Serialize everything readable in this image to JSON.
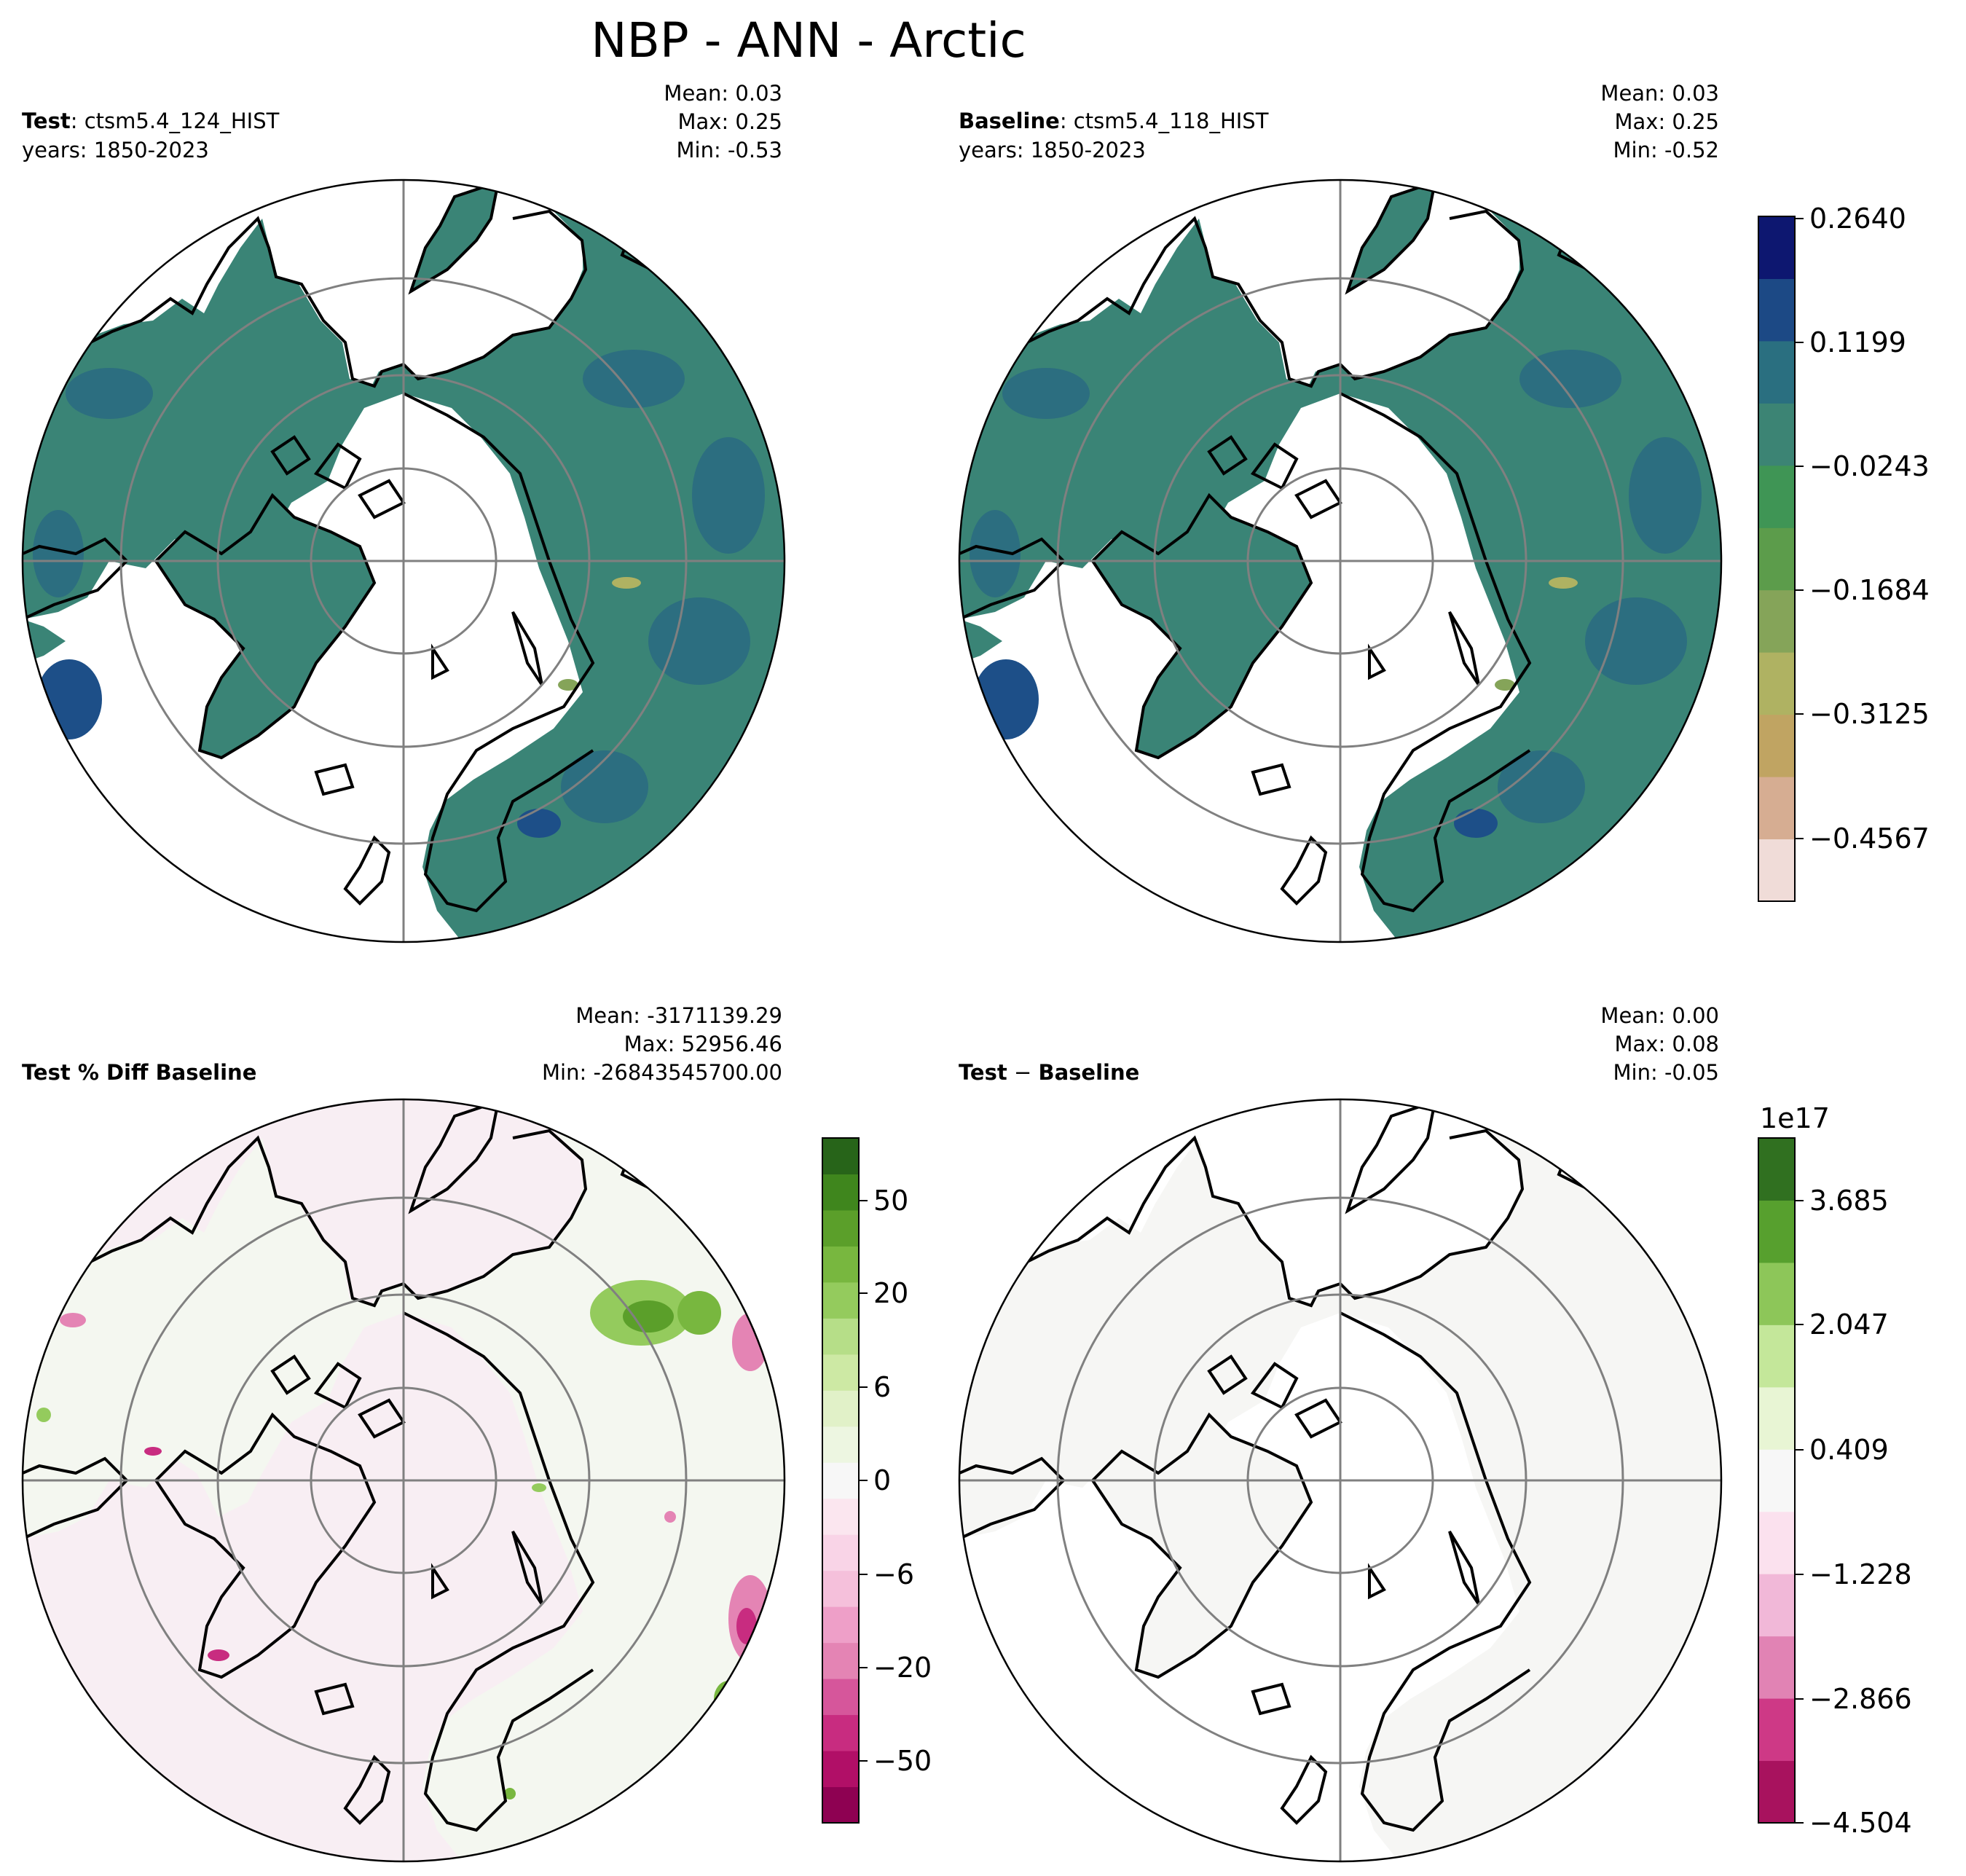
{
  "title": "NBP - ANN - Arctic",
  "panels": [
    {
      "id": "test",
      "label_bold": "Test",
      "label_rest": ": ctsm5.4_124_HIST",
      "years": "years: 1850-2023",
      "stats": {
        "mean": "Mean:  0.03",
        "max": "Max:  0.25",
        "min": "Min: -0.53"
      }
    },
    {
      "id": "baseline",
      "label_bold": "Baseline",
      "label_rest": ": ctsm5.4_118_HIST",
      "years": "years: 1850-2023",
      "stats": {
        "mean": "Mean:  0.03",
        "max": "Max:  0.25",
        "min": "Min: -0.52"
      }
    },
    {
      "id": "pct-diff",
      "label_bold": "Test % Diff Baseline",
      "label_rest": "",
      "years": "",
      "stats": {
        "mean": "Mean: -3171139.29",
        "max": "Max: 52956.46",
        "min": "Min: -26843545700.00"
      }
    },
    {
      "id": "diff",
      "label_bold": "Test",
      "label_rest": " − Baseline",
      "label_bold2": "Baseline",
      "years": "",
      "stats": {
        "mean": "Mean:  0.00",
        "max": "Max:  0.08",
        "min": "Min: -0.05"
      }
    }
  ],
  "colorbars": {
    "top": {
      "ticks": [
        "0.2640",
        "0.1199",
        "−0.0243",
        "−0.1684",
        "−0.3125",
        "−0.4567"
      ],
      "colors": [
        "#f0dcd8",
        "#d6ad92",
        "#c0a462",
        "#afb262",
        "#85a459",
        "#5c9c4b",
        "#3f9555",
        "#3c8474",
        "#2a6f80",
        "#1c4985",
        "#0d1770"
      ]
    },
    "pct": {
      "ticks": [
        "50",
        "20",
        "6",
        "0",
        "−6",
        "−20",
        "−50"
      ],
      "colors": [
        "#8e0152",
        "#b10f67",
        "#c82c80",
        "#d6569b",
        "#e484b4",
        "#ee9fc8",
        "#f5c0db",
        "#f9d4e7",
        "#fbe6ef",
        "#f7f7f7",
        "#edf6e1",
        "#e1f1c8",
        "#cde9a4",
        "#b6de88",
        "#94cb5d",
        "#78b73f",
        "#5b9f2a",
        "#3f861d",
        "#276419"
      ]
    },
    "diff": {
      "multiplier": "1e17",
      "ticks": [
        "3.685",
        "2.047",
        "0.409",
        "−1.228",
        "−2.866",
        "−4.504"
      ],
      "colors": [
        "#a8125e",
        "#ce3986",
        "#e183b4",
        "#f1b8d8",
        "#fbe1ee",
        "#f7f7f7",
        "#e8f5d4",
        "#c4e79a",
        "#8dc659",
        "#57a02e",
        "#307020"
      ]
    }
  },
  "map_colors": {
    "land_main": "#3a8476",
    "land_dark": "#2c6e80",
    "land_darker": "#1d4f88",
    "pct_bg": "#f8eef3",
    "pct_land": "#f4f7f0",
    "diff_land": "#f6f6f4",
    "grid": "#808080"
  }
}
